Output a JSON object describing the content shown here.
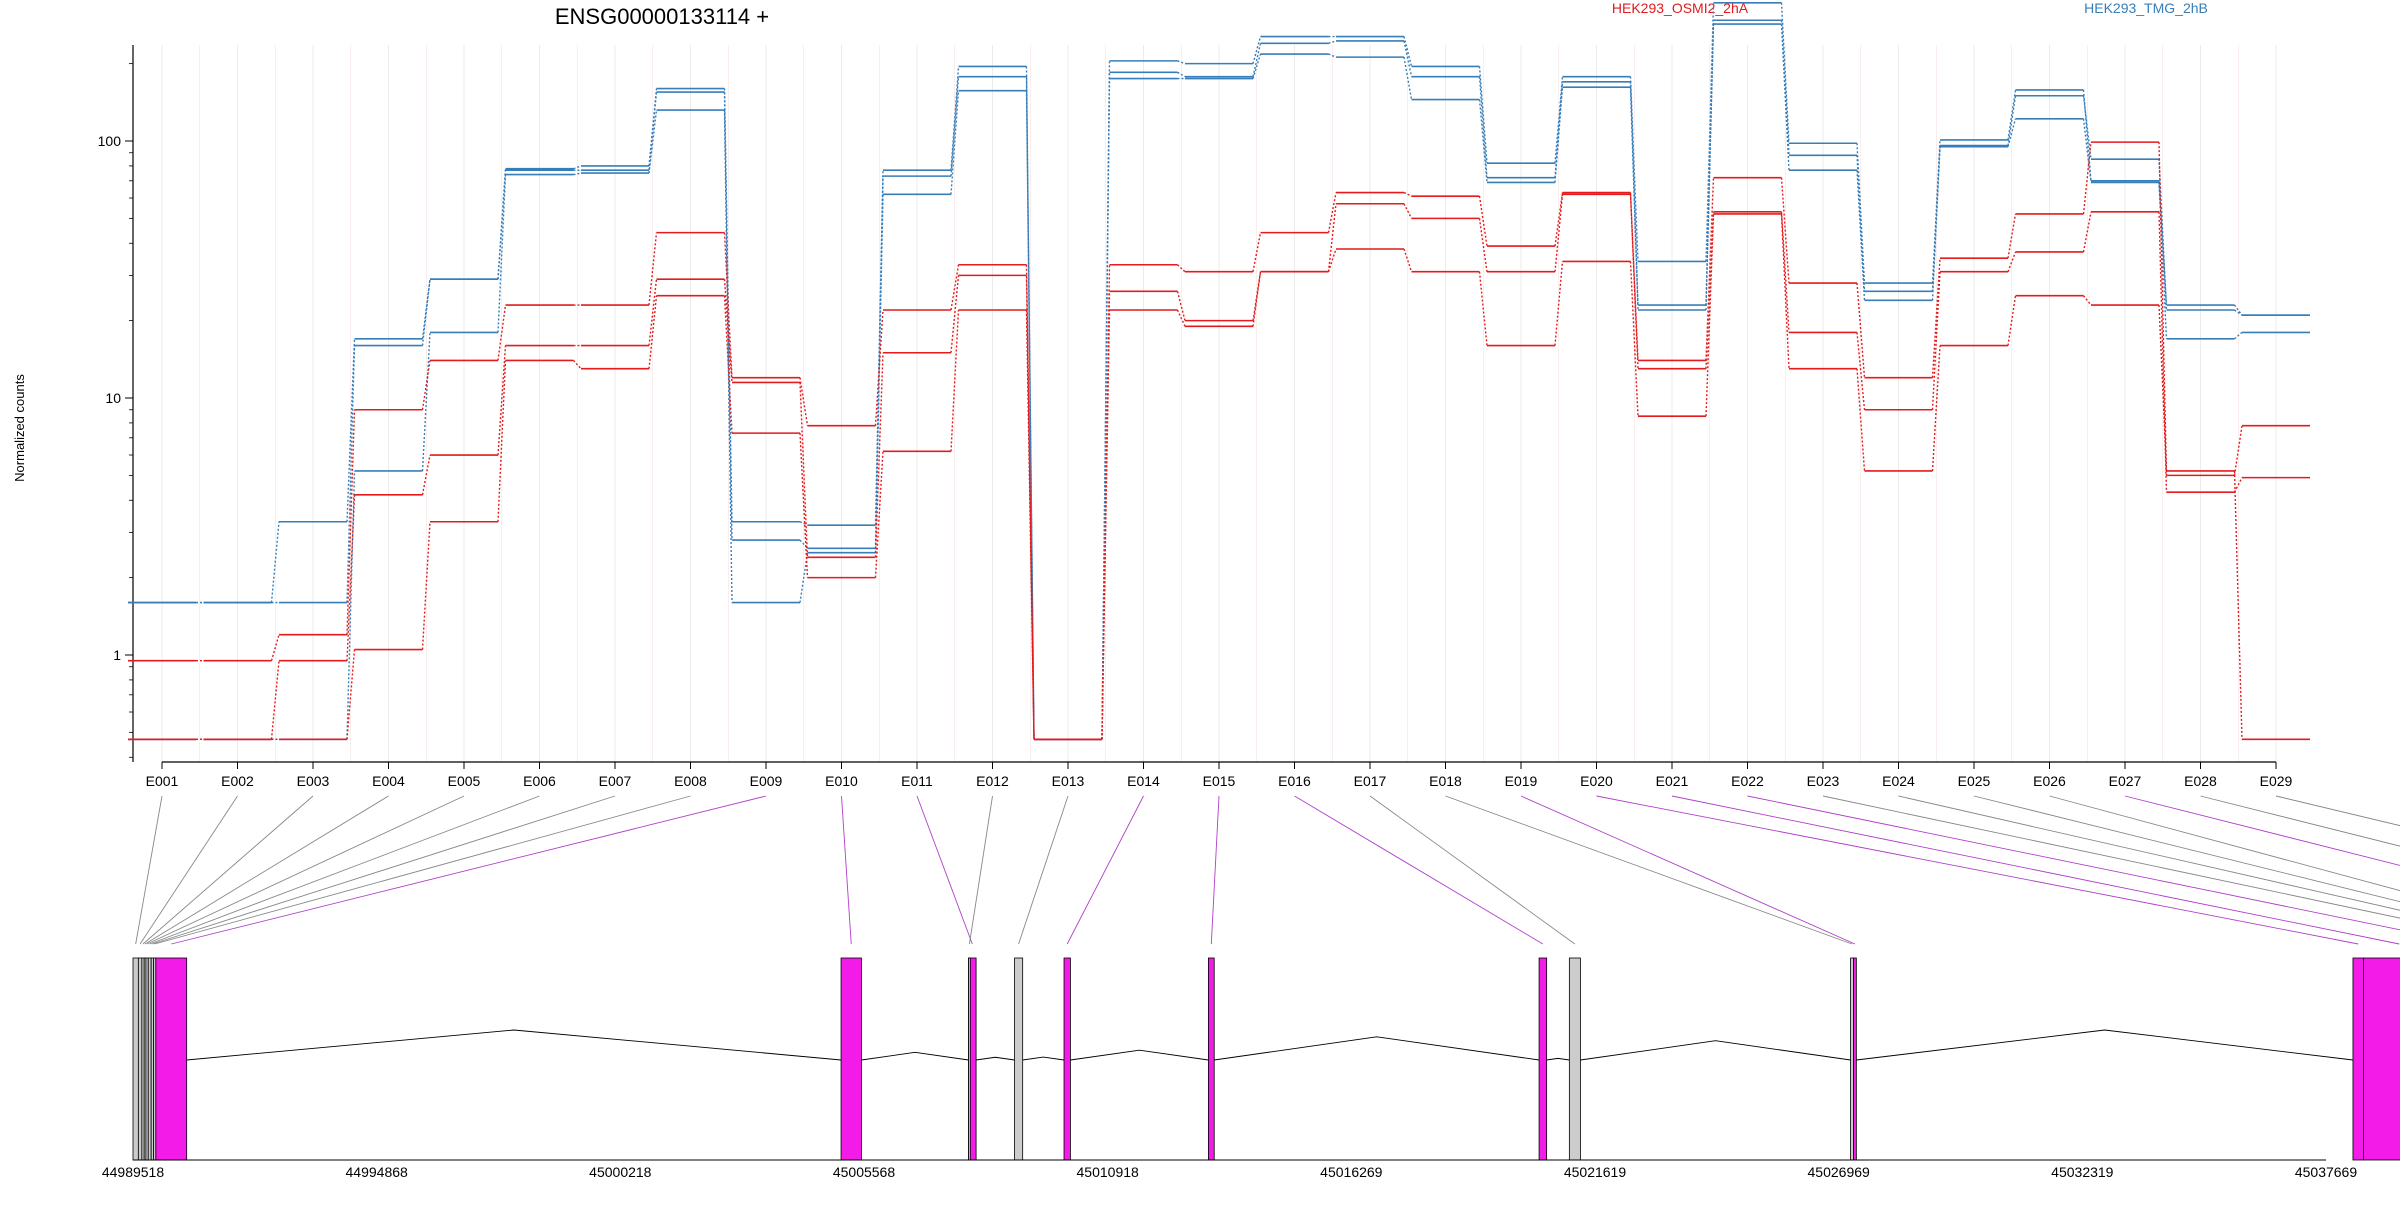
{
  "chart_data": {
    "type": "line",
    "title": "ENSG00000133114 +",
    "xlabel": "",
    "ylabel": "Normalized counts",
    "y_scale": "log",
    "y_ticks": [
      "1",
      "10",
      "100"
    ],
    "categories": [
      "E001",
      "E002",
      "E003",
      "E004",
      "E005",
      "E006",
      "E007",
      "E008",
      "E009",
      "E010",
      "E011",
      "E012",
      "E013",
      "E014",
      "E015",
      "E016",
      "E017",
      "E018",
      "E019",
      "E020",
      "E021",
      "E022",
      "E023",
      "E024",
      "E025",
      "E026",
      "E027",
      "E028",
      "E029"
    ],
    "legend": [
      {
        "name": "HEK293_OSMI2_2hA",
        "color": "#e41a1c",
        "position": "top-center"
      },
      {
        "name": "HEK293_TMG_2hB",
        "color": "#377eb8",
        "position": "top-right"
      }
    ],
    "series": [
      {
        "group": "HEK293_TMG_2hB",
        "values": [
          1.6,
          1.6,
          3.3,
          17,
          29,
          78,
          80,
          160,
          3.3,
          3.2,
          77,
          195,
          0.47,
          205,
          200,
          255,
          255,
          195,
          82,
          178,
          34,
          345,
          98,
          28,
          101,
          158,
          70,
          23,
          21
        ]
      },
      {
        "group": "HEK293_TMG_2hB",
        "values": [
          1.6,
          1.6,
          1.6,
          16,
          29,
          77,
          77,
          155,
          2.8,
          2.6,
          73,
          178,
          0.47,
          185,
          178,
          240,
          245,
          178,
          72,
          170,
          23,
          295,
          88,
          26,
          96,
          150,
          85,
          22,
          21
        ]
      },
      {
        "group": "HEK293_TMG_2hB",
        "values": [
          0.47,
          0.47,
          0.47,
          5.2,
          18,
          74,
          75,
          132,
          1.6,
          2.5,
          62,
          157,
          0.47,
          175,
          175,
          218,
          212,
          145,
          69,
          162,
          22,
          285,
          77,
          24,
          95,
          122,
          69,
          17,
          18
        ]
      },
      {
        "group": "HEK293_OSMI2_2hA",
        "values": [
          0.95,
          0.95,
          1.2,
          9.0,
          14,
          23,
          23,
          44,
          12,
          7.8,
          22,
          33,
          0.47,
          33,
          31,
          44,
          63,
          61,
          39,
          63,
          14,
          72,
          28,
          12,
          35,
          52,
          99,
          5.0,
          7.8
        ]
      },
      {
        "group": "HEK293_OSMI2_2hA",
        "values": [
          0.47,
          0.47,
          0.95,
          4.2,
          6.0,
          16,
          16,
          29,
          11.5,
          2.4,
          15,
          30,
          0.47,
          26,
          20,
          31,
          57,
          50,
          31,
          62,
          13,
          53,
          18,
          9.0,
          31,
          37,
          53,
          4.3,
          4.9
        ]
      },
      {
        "group": "HEK293_OSMI2_2hA",
        "values": [
          0.47,
          0.47,
          0.47,
          1.05,
          3.3,
          14,
          13,
          25,
          7.3,
          2.0,
          6.2,
          22,
          0.47,
          22,
          19,
          31,
          38,
          31,
          16,
          34,
          8.5,
          52,
          13,
          5.2,
          16,
          25,
          23,
          5.2,
          0.47
        ]
      }
    ],
    "gene_model": {
      "coordinate_labels": [
        "44989518",
        "44994868",
        "45000218",
        "45005568",
        "45010918",
        "45016269",
        "45021619",
        "45026969",
        "45032319",
        "45037669"
      ],
      "coordinate_range": [
        44989518,
        37669
      ],
      "exon_colors": {
        "significant": "#f21be8",
        "normal": "#cccccc",
        "outline": "#000000"
      },
      "exons": [
        {
          "id": "E001",
          "start": 44989518,
          "end": 44989610,
          "highlight": false
        },
        {
          "id": "E002",
          "start": 44989610,
          "end": 44989670,
          "highlight": false
        },
        {
          "id": "E003",
          "start": 44989670,
          "end": 44989710,
          "highlight": false
        },
        {
          "id": "E004",
          "start": 44989710,
          "end": 44989740,
          "highlight": false
        },
        {
          "id": "E005",
          "start": 44989740,
          "end": 44989780,
          "highlight": false
        },
        {
          "id": "E006",
          "start": 44989780,
          "end": 44989830,
          "highlight": false
        },
        {
          "id": "E007",
          "start": 44989830,
          "end": 44989870,
          "highlight": false
        },
        {
          "id": "E008",
          "start": 44989870,
          "end": 44989910,
          "highlight": false
        },
        {
          "id": "E009",
          "start": 44989910,
          "end": 44990440,
          "highlight": true
        },
        {
          "id": "E010",
          "start": 45001680,
          "end": 45002030,
          "highlight": true
        },
        {
          "id": "E011",
          "start": 45003870,
          "end": 45004000,
          "highlight": true
        },
        {
          "id": "E012",
          "start": 45003870,
          "end": 45003900,
          "highlight": false
        },
        {
          "id": "E013",
          "start": 45004660,
          "end": 45004800,
          "highlight": false
        },
        {
          "id": "E014",
          "start": 45005510,
          "end": 45005620,
          "highlight": true
        },
        {
          "id": "E015",
          "start": 45007990,
          "end": 45008090,
          "highlight": true
        },
        {
          "id": "E016",
          "start": 45013670,
          "end": 45013800,
          "highlight": true
        },
        {
          "id": "E017",
          "start": 45014190,
          "end": 45014380,
          "highlight": false
        },
        {
          "id": "E018",
          "start": 45019020,
          "end": 45019070,
          "highlight": false
        },
        {
          "id": "E019",
          "start": 45019070,
          "end": 45019120,
          "highlight": true
        },
        {
          "id": "E020",
          "start": 45027650,
          "end": 45027830,
          "highlight": true
        },
        {
          "id": "E021",
          "start": 45027830,
          "end": 45029060,
          "highlight": true
        },
        {
          "id": "E022",
          "start": 45029060,
          "end": 45030240,
          "highlight": true
        },
        {
          "id": "E023",
          "start": 45030240,
          "end": 45030880,
          "highlight": false
        },
        {
          "id": "E024",
          "start": 45030880,
          "end": 45031130,
          "highlight": false
        },
        {
          "id": "E025",
          "start": 45031130,
          "end": 45031640,
          "highlight": false
        },
        {
          "id": "E026",
          "start": 45031640,
          "end": 45032070,
          "highlight": false
        },
        {
          "id": "E027",
          "start": 45033520,
          "end": 45034090,
          "highlight": true
        },
        {
          "id": "E028",
          "start": 45034090,
          "end": 45036210,
          "highlight": false
        },
        {
          "id": "E029",
          "start": 45036210,
          "end": 45037720,
          "highlight": false
        }
      ]
    }
  }
}
